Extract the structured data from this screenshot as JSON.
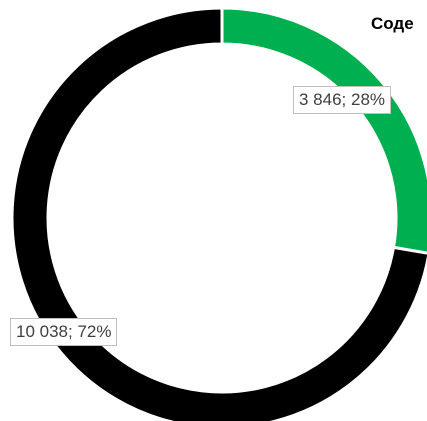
{
  "chart_data": {
    "type": "pie",
    "subtype": "doughnut",
    "title": "Соде",
    "slices": [
      {
        "value": 3846,
        "percent": 28,
        "label": "3 846; 28%",
        "color": "#00b050"
      },
      {
        "value": 10038,
        "percent": 72,
        "label": "10 038; 72%",
        "color": "#000000"
      }
    ],
    "start_angle": "top",
    "direction": "clockwise",
    "legend": "none"
  }
}
